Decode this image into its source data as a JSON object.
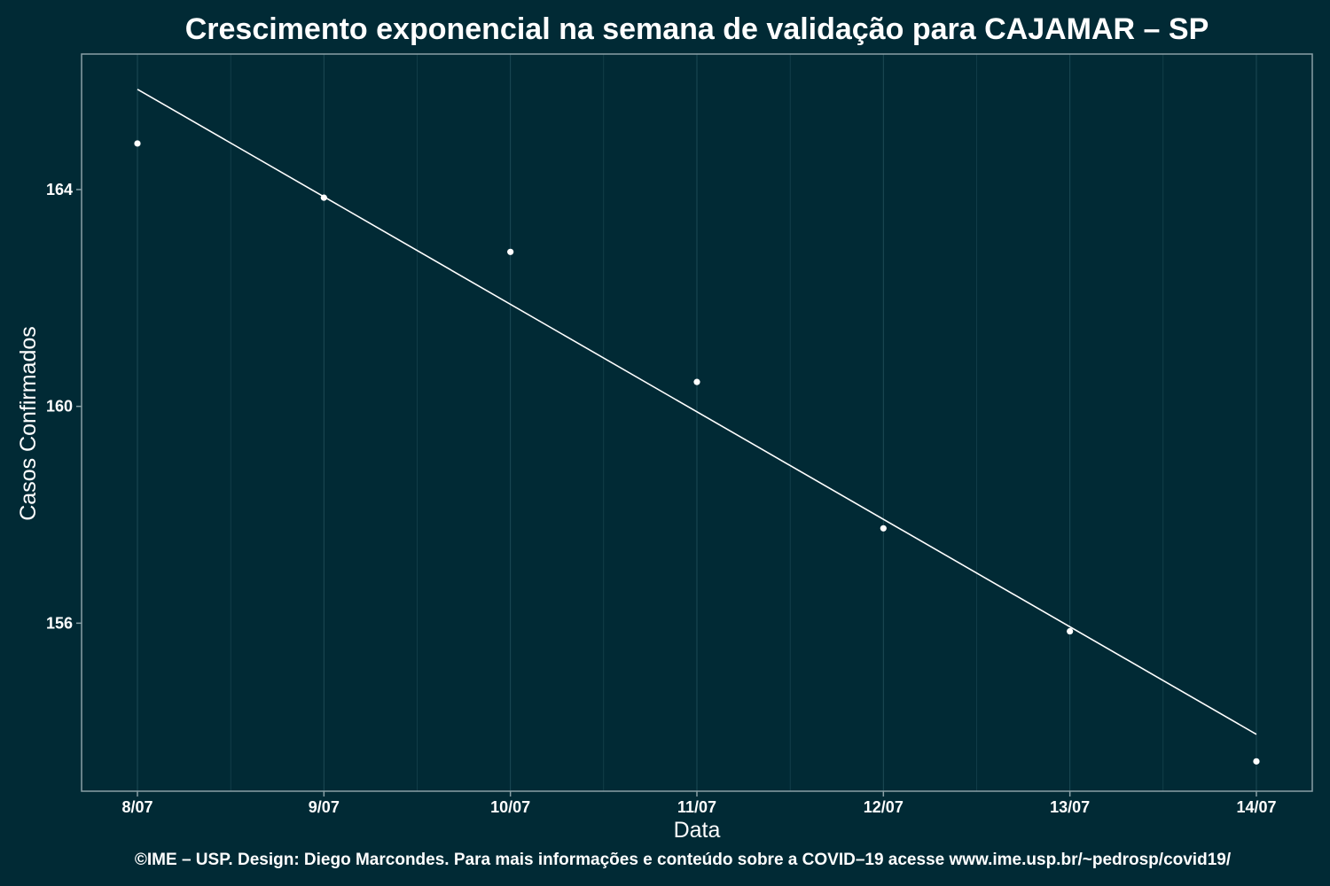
{
  "colors": {
    "background": "#012a35",
    "text": "#ffffff",
    "grid": "#1d4a55",
    "panel_border": "#8aa0a6",
    "points": "#ffffff",
    "trend_line": "#ffffff"
  },
  "chart_data": {
    "type": "scatter",
    "title": "Crescimento exponencial na semana de validação para CAJAMAR – SP",
    "xlabel": "Data",
    "ylabel": "Casos Confirmados",
    "categories": [
      "8/07",
      "9/07",
      "10/07",
      "11/07",
      "12/07",
      "13/07",
      "14/07"
    ],
    "y_ticks": [
      156,
      160,
      164
    ],
    "ylim": [
      152.9,
      166.5
    ],
    "grid": true,
    "legend": "none",
    "series": [
      {
        "kind": "points",
        "values": [
          164.85,
          163.85,
          162.85,
          160.45,
          157.75,
          155.85,
          153.45
        ]
      },
      {
        "kind": "fit-line",
        "values": [
          165.85,
          null,
          null,
          null,
          null,
          null,
          153.95
        ]
      }
    ],
    "caption": "©IME – USP. Design: Diego Marcondes. Para mais informações e conteúdo sobre a COVID–19 acesse www.ime.usp.br/~pedrosp/covid19/"
  }
}
